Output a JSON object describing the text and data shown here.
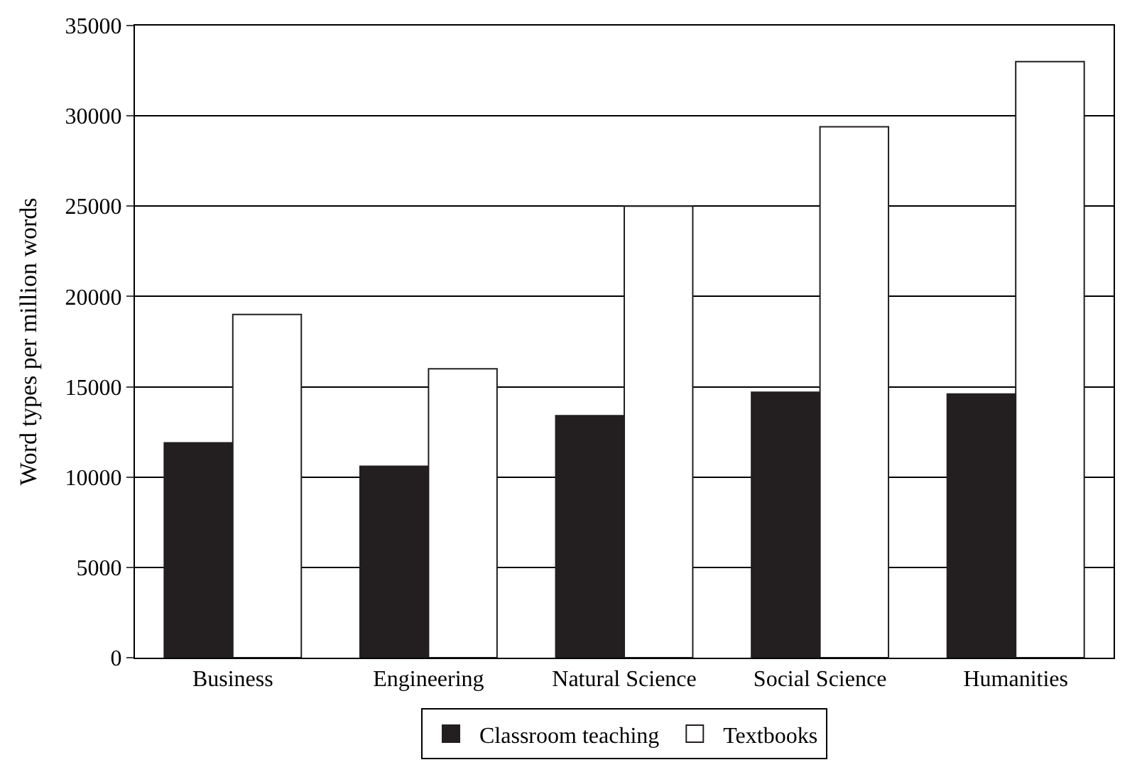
{
  "chart_data": {
    "type": "bar",
    "ylabel": "Word types per million words",
    "categories": [
      "Business",
      "Engineering",
      "Natural Science",
      "Social Science",
      "Humanities"
    ],
    "series": [
      {
        "name": "Classroom teaching",
        "color": "#231f20",
        "values": [
          11900,
          10600,
          13400,
          14700,
          14600
        ]
      },
      {
        "name": "Textbooks",
        "color": "#ffffff",
        "values": [
          19000,
          16000,
          25000,
          29400,
          33000
        ]
      }
    ],
    "ylim": [
      0,
      35000
    ],
    "yticks": [
      0,
      5000,
      10000,
      15000,
      20000,
      25000,
      30000,
      35000
    ],
    "grid": "y",
    "legend": "bottom"
  }
}
